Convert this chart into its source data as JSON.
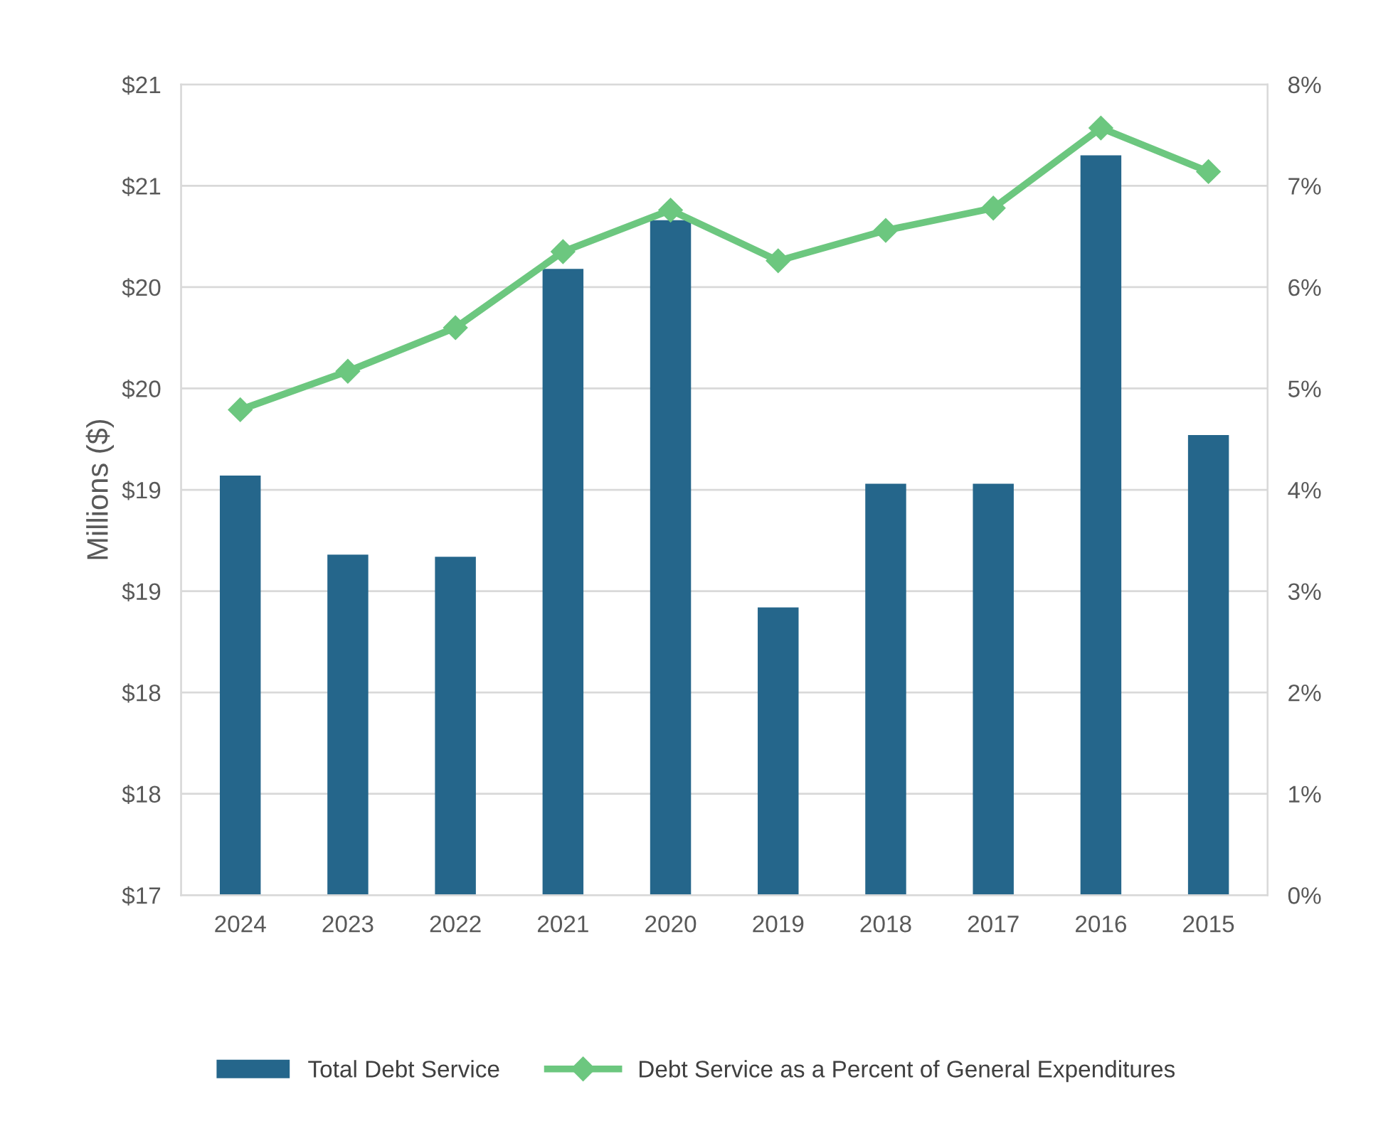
{
  "chart_data": {
    "type": "bar",
    "ylabel": "Millions ($)",
    "categories": [
      "2024",
      "2023",
      "2022",
      "2021",
      "2020",
      "2019",
      "2018",
      "2017",
      "2016",
      "2015"
    ],
    "series": [
      {
        "name": "Total Debt Service",
        "color": "#25668b",
        "values": [
          19.07,
          18.68,
          18.67,
          20.09,
          20.33,
          18.42,
          19.03,
          19.03,
          20.65,
          19.27
        ]
      },
      {
        "name": "Debt Service as a Percent of General Expenditures",
        "type": "line",
        "axis": "y2",
        "color": "#6cc77f",
        "marker": "diamond",
        "values": [
          4.79,
          5.17,
          5.6,
          6.35,
          6.76,
          6.26,
          6.56,
          6.78,
          7.57,
          7.14
        ]
      }
    ],
    "ylim": [
      17,
      21
    ],
    "yticks": [
      {
        "value": 17,
        "label": "$17"
      },
      {
        "value": 17.5,
        "label": "$18"
      },
      {
        "value": 18,
        "label": "$18"
      },
      {
        "value": 18.5,
        "label": "$19"
      },
      {
        "value": 19,
        "label": "$19"
      },
      {
        "value": 19.5,
        "label": "$20"
      },
      {
        "value": 20,
        "label": "$20"
      },
      {
        "value": 20.5,
        "label": "$21"
      },
      {
        "value": 21,
        "label": "$21"
      }
    ],
    "y2lim": [
      0,
      8
    ],
    "y2ticks": [
      {
        "value": 0,
        "label": "0%"
      },
      {
        "value": 1,
        "label": "1%"
      },
      {
        "value": 2,
        "label": "2%"
      },
      {
        "value": 3,
        "label": "3%"
      },
      {
        "value": 4,
        "label": "4%"
      },
      {
        "value": 5,
        "label": "5%"
      },
      {
        "value": 6,
        "label": "6%"
      },
      {
        "value": 7,
        "label": "7%"
      },
      {
        "value": 8,
        "label": "8%"
      }
    ],
    "grid": "y",
    "legend": "bottom"
  }
}
